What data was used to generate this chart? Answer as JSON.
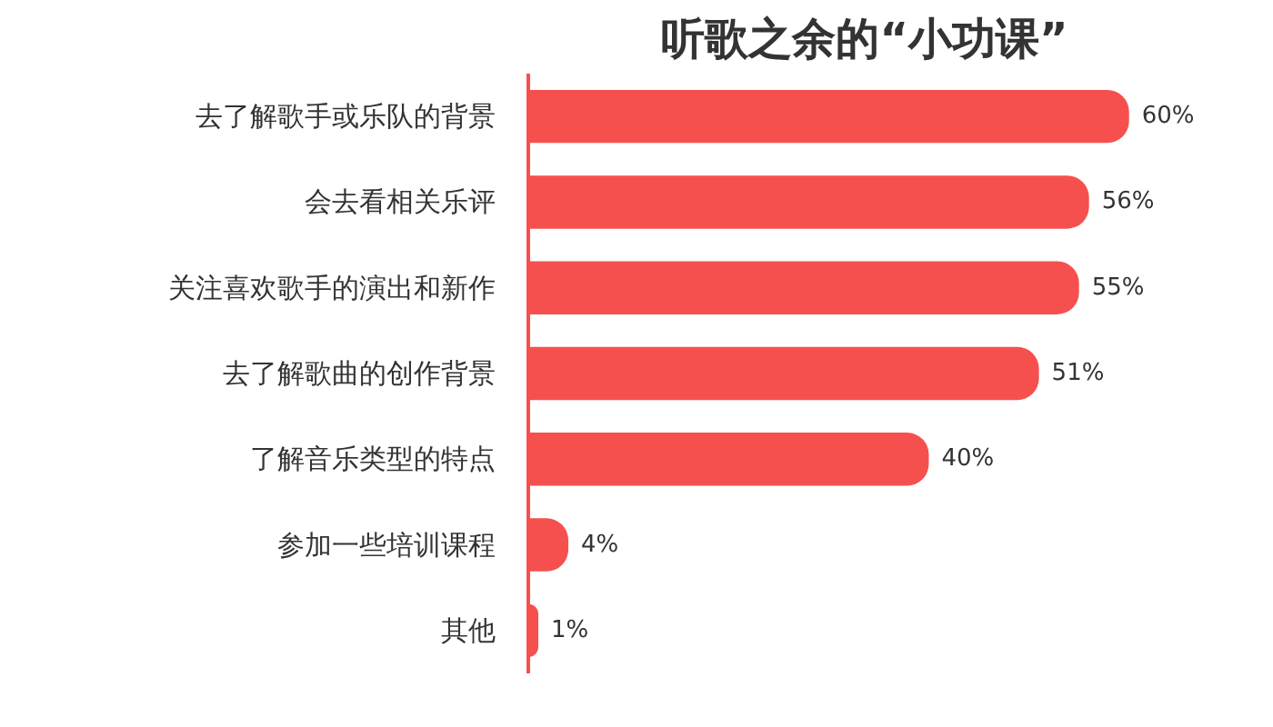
{
  "chart_data": {
    "type": "bar",
    "orientation": "horizontal",
    "title": "听歌之余的“小功课”",
    "categories": [
      "去了解歌手或乐队的背景",
      "会去看相关乐评",
      "关注喜欢歌手的演出和新作",
      "去了解歌曲的创作背景",
      "了解音乐类型的特点",
      "参加一些培训课程",
      "其他"
    ],
    "values": [
      60,
      56,
      55,
      51,
      40,
      4,
      1
    ],
    "value_labels": [
      "60%",
      "56%",
      "55%",
      "51%",
      "40%",
      "4%",
      "1%"
    ],
    "color": "#f5504e",
    "grid": false
  }
}
